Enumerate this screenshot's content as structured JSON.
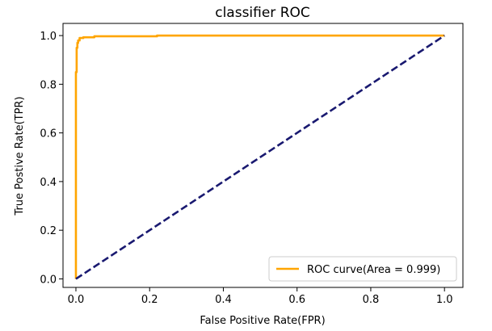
{
  "chart_data": {
    "type": "line",
    "title": "classifier ROC",
    "xlabel": "False Positive Rate(FPR)",
    "ylabel": "True Postive Rate(TPR)",
    "xlim": [
      -0.035,
      1.05
    ],
    "ylim": [
      -0.035,
      1.05
    ],
    "xticks": [
      0.0,
      0.2,
      0.4,
      0.6,
      0.8,
      1.0
    ],
    "yticks": [
      0.0,
      0.2,
      0.4,
      0.6,
      0.8,
      1.0
    ],
    "xtick_labels": [
      "0.0",
      "0.2",
      "0.4",
      "0.6",
      "0.8",
      "1.0"
    ],
    "ytick_labels": [
      "0.0",
      "0.2",
      "0.4",
      "0.6",
      "0.8",
      "1.0"
    ],
    "grid": false,
    "legend_position": "lower-right",
    "series": [
      {
        "name": "ROC curve(Area = 0.999)",
        "color": "#FFA500",
        "line_style": "solid",
        "x": [
          0.0,
          0.0,
          0.0,
          0.002,
          0.002,
          0.004,
          0.004,
          0.006,
          0.006,
          0.01,
          0.01,
          0.02,
          0.02,
          0.05,
          0.05,
          0.22,
          0.22,
          1.0
        ],
        "y": [
          0.0,
          0.85,
          0.85,
          0.85,
          0.95,
          0.95,
          0.97,
          0.97,
          0.98,
          0.98,
          0.99,
          0.99,
          0.993,
          0.993,
          0.997,
          0.997,
          1.0,
          1.0
        ]
      },
      {
        "color": "#191970",
        "line_style": "dashed",
        "x": [
          0.0,
          1.0
        ],
        "y": [
          0.0,
          1.0
        ]
      }
    ]
  }
}
